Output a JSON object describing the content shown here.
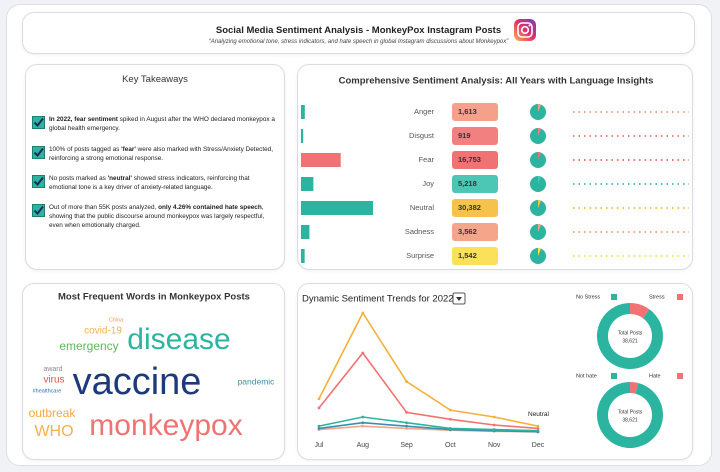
{
  "header": {
    "title": "Social Media Sentiment Analysis - MonkeyPox Instagram Posts",
    "subtitle": "“Analyzing emotional tone, stress indicators, and hate speech in global Instagram discussions about Monkeypox”"
  },
  "takeaways": {
    "title": "Key Takeaways",
    "items": [
      [
        {
          "text": "In 2022, fear sentiment",
          "bold": true
        },
        {
          "text": " spiked in August after the WHO declared monkeypox a global health emergency.",
          "bold": false
        }
      ],
      [
        {
          "text": "100% of posts tagged as ",
          "bold": false
        },
        {
          "text": "'fear'",
          "bold": true
        },
        {
          "text": " were also marked with Stress/Anxiety Detected, reinforcing a strong emotional response.",
          "bold": false
        }
      ],
      [
        {
          "text": "No posts marked as ",
          "bold": false
        },
        {
          "text": "'neutral'",
          "bold": true
        },
        {
          "text": " showed stress indicators, reinforcing that emotional tone is a key driver of anxiety-related language.",
          "bold": false
        }
      ],
      [
        {
          "text": "Out of more than 55K posts analyzed, ",
          "bold": false
        },
        {
          "text": "only 4.26% contained hate speech",
          "bold": true
        },
        {
          "text": ", showing that the public discourse around monkeypox was largely respectful, even when emotionally charged.",
          "bold": false
        }
      ]
    ]
  },
  "word_cloud": {
    "title": "Most Frequent Words in Monkeypox Posts",
    "words": [
      {
        "text": "China",
        "color": "#f39c34"
      },
      {
        "text": "covid-19",
        "color": "#f6b04a"
      },
      {
        "text": "disease",
        "color": "#2bb5a0"
      },
      {
        "text": "emergency",
        "color": "#5cb85c"
      },
      {
        "text": "award",
        "color": "#8a8a8a"
      },
      {
        "text": "virus",
        "color": "#e0504a"
      },
      {
        "text": "vaccine",
        "color": "#1d3a7a"
      },
      {
        "text": "pandemic",
        "color": "#3b8fb0"
      },
      {
        "text": "#healthcare",
        "color": "#2a6fb5"
      },
      {
        "text": "outbreak",
        "color": "#f6a83a"
      },
      {
        "text": "WHO",
        "color": "#f6b04a"
      },
      {
        "text": "monkeypox",
        "color": "#f07272"
      }
    ]
  },
  "chart_data": [
    {
      "type": "bar",
      "orientation": "horizontal",
      "title": "Comprehensive Sentiment Analysis: All Years with Language Insights",
      "categories": [
        "Anger",
        "Disgust",
        "Fear",
        "Joy",
        "Neutral",
        "Sadness",
        "Surprise"
      ],
      "values": [
        1613,
        919,
        16753,
        5218,
        30382,
        3562,
        1542
      ],
      "value_labels": [
        "1,613",
        "919",
        "16,753",
        "5,218",
        "30,382",
        "3,562",
        "1,542"
      ],
      "colors": [
        "#2bb5a0",
        "#2bb5a0",
        "#f07272",
        "#2bb5a0",
        "#2bb5a0",
        "#2bb5a0",
        "#2bb5a0"
      ],
      "badge_colors": [
        "#f4a08a",
        "#f28080",
        "#f07272",
        "#4dc7b5",
        "#f6c24c",
        "#f4a58a",
        "#fbe05a"
      ]
    },
    {
      "type": "line",
      "title": "Dynamic Sentiment Trends for 2022",
      "categories": [
        "Jul",
        "Aug",
        "Sep",
        "Oct",
        "Nov",
        "Dec"
      ],
      "series": [
        {
          "name": "Neutral",
          "color": "#f6b03a",
          "values": [
            3000,
            10500,
            4500,
            2000,
            1400,
            600
          ]
        },
        {
          "color": "#f07272",
          "values": [
            2200,
            7000,
            1800,
            1200,
            700,
            400
          ]
        },
        {
          "color": "#2bb5a0",
          "values": [
            600,
            1400,
            900,
            400,
            300,
            200
          ]
        },
        {
          "color": "#3b8fb0",
          "values": [
            400,
            900,
            600,
            300,
            200,
            100
          ]
        },
        {
          "color": "#f4a58a",
          "values": [
            300,
            600,
            400,
            250,
            150,
            100
          ]
        }
      ]
    },
    {
      "type": "pie",
      "categories": [
        "No Stress",
        "Stress"
      ],
      "values": [
        90,
        10
      ],
      "colors": [
        "#2bb5a0",
        "#f07272"
      ],
      "total_title": "Total Posts",
      "total": {
        "value": 38621,
        "label": "38,621"
      }
    },
    {
      "type": "pie",
      "categories": [
        "Not hate",
        "Hate"
      ],
      "values": [
        96,
        4
      ],
      "colors": [
        "#2bb5a0",
        "#f07272"
      ],
      "total_title": "Total Posts",
      "total": {
        "value": 38621,
        "label": "38,621"
      }
    }
  ]
}
